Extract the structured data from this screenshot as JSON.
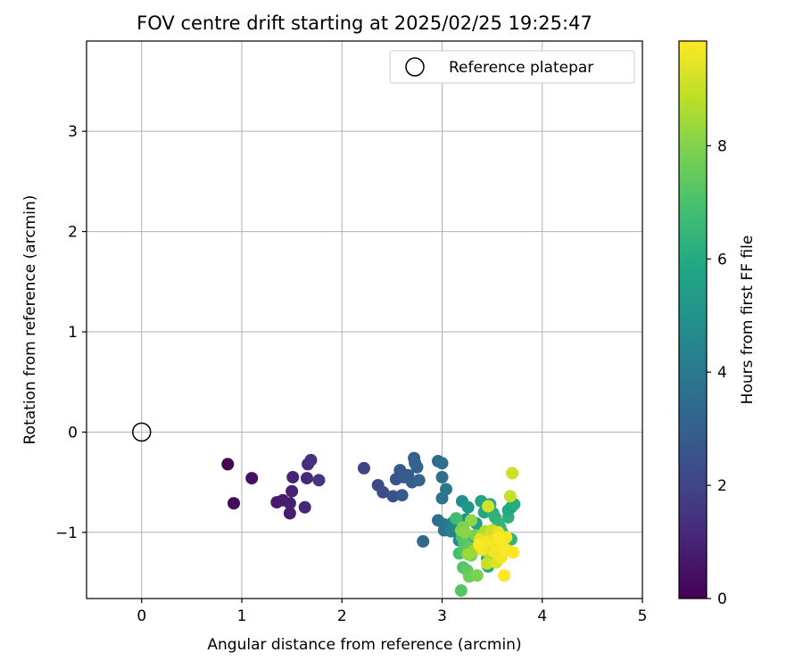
{
  "chart_data": {
    "type": "scatter",
    "title": "FOV centre drift starting at 2025/02/25 19:25:47",
    "xlabel": "Angular distance from reference (arcmin)",
    "ylabel": "Rotation from reference (arcmin)",
    "xlim": [
      -0.55,
      5.0
    ],
    "ylim": [
      -1.66,
      3.9
    ],
    "xticks": [
      0,
      1,
      2,
      3,
      4,
      5
    ],
    "yticks": [
      -1,
      0,
      1,
      2,
      3
    ],
    "xtick_labels": [
      "0",
      "1",
      "2",
      "3",
      "4",
      "5"
    ],
    "ytick_labels": [
      "−1",
      "0",
      "1",
      "2",
      "3"
    ],
    "grid": true,
    "legend": {
      "position": "top-right",
      "entries": [
        "Reference platepar"
      ]
    },
    "reference": {
      "x": 0,
      "y": 0,
      "label": "Reference platepar"
    },
    "colorbar": {
      "label": "Hours from first FF file",
      "min": 0,
      "max": 9.85,
      "ticks": [
        0,
        2,
        4,
        6,
        8
      ],
      "tick_labels": [
        "0",
        "2",
        "4",
        "6",
        "8"
      ],
      "colormap": "viridis"
    },
    "points": [
      [
        0.86,
        -0.32,
        0.1
      ],
      [
        0.92,
        -0.71,
        0.25
      ],
      [
        1.1,
        -0.46,
        0.45
      ],
      [
        1.35,
        -0.7,
        0.7
      ],
      [
        1.41,
        -0.68,
        0.75
      ],
      [
        1.48,
        -0.81,
        0.8
      ],
      [
        1.48,
        -0.71,
        0.85
      ],
      [
        1.5,
        -0.59,
        0.9
      ],
      [
        1.51,
        -0.45,
        1.0
      ],
      [
        1.63,
        -0.75,
        1.1
      ],
      [
        1.65,
        -0.46,
        1.2
      ],
      [
        1.66,
        -0.32,
        1.3
      ],
      [
        1.69,
        -0.28,
        1.4
      ],
      [
        1.77,
        -0.48,
        1.5
      ],
      [
        2.22,
        -0.36,
        2.0
      ],
      [
        2.36,
        -0.53,
        2.2
      ],
      [
        2.41,
        -0.6,
        2.3
      ],
      [
        2.51,
        -0.64,
        2.45
      ],
      [
        2.54,
        -0.47,
        2.6
      ],
      [
        2.58,
        -0.38,
        2.7
      ],
      [
        2.6,
        -0.63,
        2.75
      ],
      [
        2.62,
        -0.45,
        2.8
      ],
      [
        2.66,
        -0.43,
        2.85
      ],
      [
        2.7,
        -0.5,
        2.9
      ],
      [
        2.72,
        -0.26,
        3.0
      ],
      [
        2.73,
        -0.31,
        3.05
      ],
      [
        2.75,
        -0.35,
        3.1
      ],
      [
        2.77,
        -0.48,
        3.15
      ],
      [
        2.81,
        -1.09,
        3.3
      ],
      [
        2.96,
        -0.29,
        3.4
      ],
      [
        2.96,
        -0.88,
        3.5
      ],
      [
        3.0,
        -0.31,
        3.55
      ],
      [
        3.0,
        -0.45,
        3.6
      ],
      [
        3.0,
        -0.66,
        3.7
      ],
      [
        3.02,
        -0.92,
        3.75
      ],
      [
        3.02,
        -0.98,
        3.8
      ],
      [
        3.04,
        -0.57,
        3.9
      ],
      [
        3.06,
        -0.95,
        4.0
      ],
      [
        3.09,
        -0.99,
        4.2
      ],
      [
        3.11,
        -0.9,
        4.4
      ],
      [
        3.14,
        -0.93,
        4.6
      ],
      [
        3.17,
        -1.08,
        4.7
      ],
      [
        3.2,
        -0.69,
        4.8
      ],
      [
        3.21,
        -1.05,
        4.9
      ],
      [
        3.24,
        -0.87,
        5.0
      ],
      [
        3.26,
        -0.75,
        5.2
      ],
      [
        3.28,
        -1.15,
        5.3
      ],
      [
        3.31,
        -1.04,
        5.4
      ],
      [
        3.34,
        -0.91,
        5.5
      ],
      [
        3.37,
        -0.99,
        5.6
      ],
      [
        3.39,
        -0.69,
        5.7
      ],
      [
        3.42,
        -0.8,
        5.8
      ],
      [
        3.45,
        -1.26,
        5.9
      ],
      [
        3.46,
        -1.34,
        6.0
      ],
      [
        3.48,
        -0.72,
        6.1
      ],
      [
        3.51,
        -0.81,
        6.2
      ],
      [
        3.53,
        -0.85,
        6.3
      ],
      [
        3.56,
        -0.91,
        6.4
      ],
      [
        3.58,
        -0.95,
        6.45
      ],
      [
        3.6,
        -1.0,
        6.5
      ],
      [
        3.63,
        -1.05,
        6.6
      ],
      [
        3.66,
        -0.85,
        6.3
      ],
      [
        3.69,
        -1.07,
        6.4
      ],
      [
        3.66,
        -0.78,
        5.9
      ],
      [
        3.69,
        -0.75,
        5.8
      ],
      [
        3.72,
        -0.72,
        6.0
      ],
      [
        3.14,
        -0.86,
        6.8
      ],
      [
        3.17,
        -1.21,
        6.9
      ],
      [
        3.2,
        -1.05,
        7.0
      ],
      [
        3.21,
        -1.35,
        7.1
      ],
      [
        3.22,
        -1.1,
        7.2
      ],
      [
        3.24,
        -1.2,
        7.3
      ],
      [
        3.25,
        -1.38,
        7.4
      ],
      [
        3.27,
        -1.15,
        7.5
      ],
      [
        3.27,
        -1.44,
        7.6
      ],
      [
        3.29,
        -1.23,
        7.7
      ],
      [
        3.33,
        -1.03,
        7.8
      ],
      [
        3.35,
        -1.43,
        7.9
      ],
      [
        3.19,
        -1.58,
        7.2
      ],
      [
        3.29,
        -0.88,
        8.2
      ],
      [
        3.19,
        -0.98,
        8.0
      ],
      [
        3.21,
        -0.95,
        7.9
      ],
      [
        3.23,
        -1.0,
        8.1
      ],
      [
        3.26,
        -1.22,
        8.3
      ],
      [
        3.31,
        -1.19,
        8.4
      ],
      [
        3.4,
        -1.03,
        8.6
      ],
      [
        3.42,
        -1.13,
        8.8
      ],
      [
        3.43,
        -0.99,
        8.7
      ],
      [
        3.45,
        -1.19,
        8.9
      ],
      [
        3.45,
        -1.31,
        9.0
      ],
      [
        3.46,
        -0.74,
        9.2
      ],
      [
        3.48,
        -1.09,
        9.3
      ],
      [
        3.49,
        -1.02,
        9.4
      ],
      [
        3.5,
        -0.98,
        9.1
      ],
      [
        3.51,
        -1.08,
        9.5
      ],
      [
        3.52,
        -1.2,
        9.6
      ],
      [
        3.53,
        -1.13,
        9.7
      ],
      [
        3.54,
        -1.3,
        9.3
      ],
      [
        3.56,
        -1.0,
        9.5
      ],
      [
        3.58,
        -1.1,
        9.6
      ],
      [
        3.59,
        -1.25,
        9.7
      ],
      [
        3.6,
        -1.08,
        9.8
      ],
      [
        3.61,
        -1.15,
        9.75
      ],
      [
        3.62,
        -1.43,
        9.85
      ],
      [
        3.64,
        -1.05,
        9.7
      ],
      [
        3.65,
        -1.18,
        9.8
      ],
      [
        3.68,
        -0.64,
        9.0
      ],
      [
        3.7,
        -0.41,
        9.1
      ],
      [
        3.71,
        -1.2,
        9.85
      ],
      [
        3.38,
        -1.07,
        9.4
      ],
      [
        3.4,
        -1.17,
        9.6
      ],
      [
        3.43,
        -1.1,
        9.7
      ],
      [
        3.37,
        -1.12,
        9.8
      ],
      [
        3.57,
        -1.05,
        9.9
      ]
    ]
  }
}
